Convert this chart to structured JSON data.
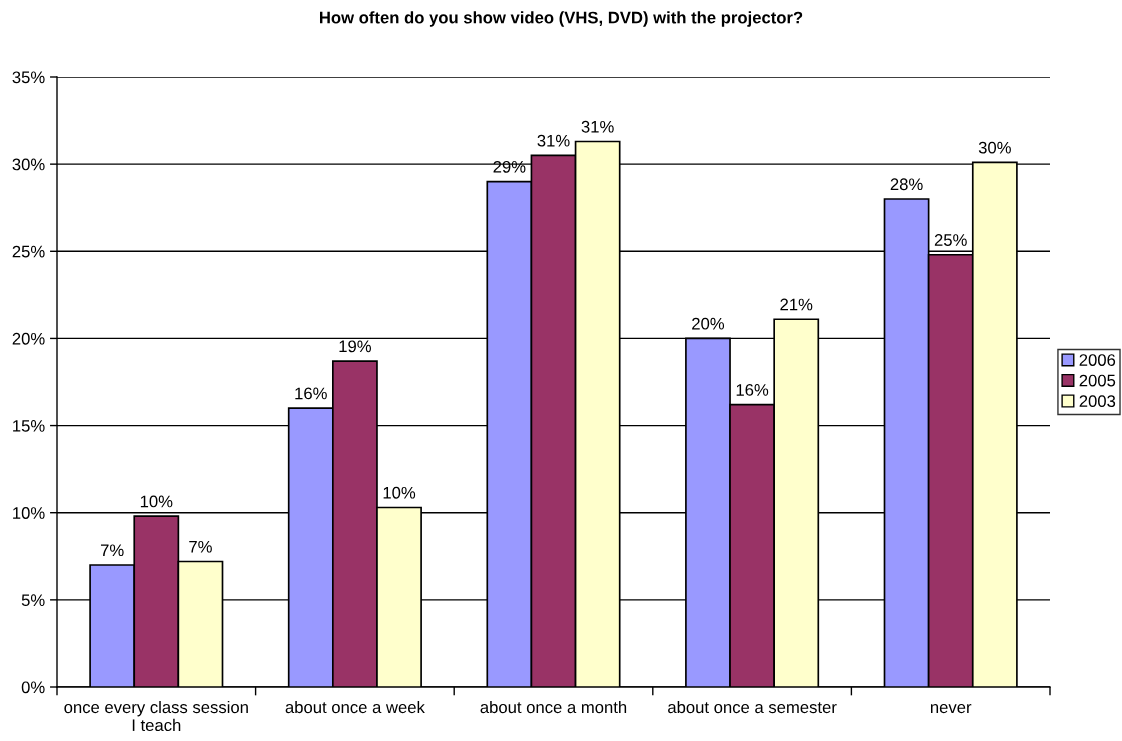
{
  "chart_data": {
    "type": "bar",
    "title": "How often do you show video (VHS, DVD) with the projector?",
    "categories": [
      "once every class session\nI teach",
      "about once a week",
      "about once a month",
      "about once a semester",
      "never"
    ],
    "series": [
      {
        "name": "2006",
        "color": "#9999ff",
        "values": [
          7.0,
          16.0,
          29.0,
          20.0,
          28.0
        ],
        "value_labels": [
          "7%",
          "16%",
          "29%",
          "20%",
          "28%"
        ]
      },
      {
        "name": "2005",
        "color": "#993366",
        "values": [
          9.8,
          18.7,
          30.5,
          16.2,
          24.8
        ],
        "value_labels": [
          "10%",
          "19%",
          "31%",
          "16%",
          "25%"
        ]
      },
      {
        "name": "2003",
        "color": "#ffffcc",
        "values": [
          7.2,
          10.3,
          31.3,
          21.1,
          30.1
        ],
        "value_labels": [
          "7%",
          "10%",
          "31%",
          "21%",
          "30%"
        ]
      }
    ],
    "ylim": [
      0,
      35
    ],
    "yticks": [
      {
        "value": 0,
        "label": "0%"
      },
      {
        "value": 5,
        "label": "5%"
      },
      {
        "value": 10,
        "label": "10%"
      },
      {
        "value": 15,
        "label": "15%"
      },
      {
        "value": 20,
        "label": "20%"
      },
      {
        "value": 25,
        "label": "25%"
      },
      {
        "value": 30,
        "label": "30%"
      },
      {
        "value": 35,
        "label": "35%"
      }
    ],
    "grid": "y",
    "legend": "right"
  }
}
